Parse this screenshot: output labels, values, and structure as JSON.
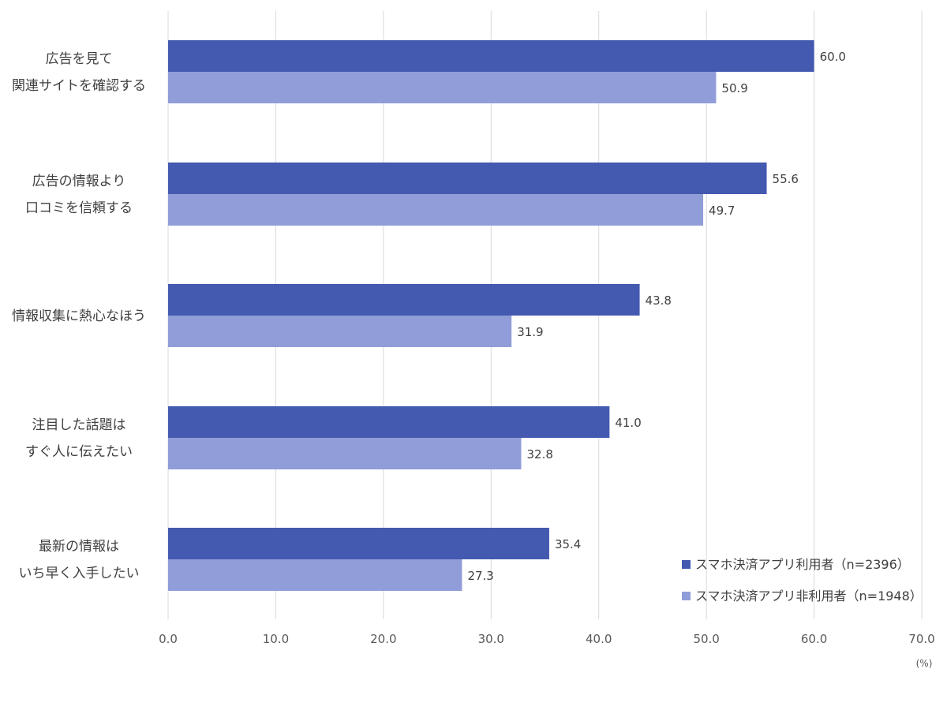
{
  "chart_data": {
    "type": "bar",
    "orientation": "horizontal",
    "categories": [
      [
        "広告を見て",
        "関連サイトを確認する"
      ],
      [
        "広告の情報より",
        "口コミを信頼する"
      ],
      [
        "情報収集に熱心なほう"
      ],
      [
        "注目した話題は",
        "すぐ人に伝えたい"
      ],
      [
        "最新の情報は",
        "いち早く入手したい"
      ]
    ],
    "series": [
      {
        "name": "スマホ決済アプリ利用者（n=2396）",
        "color": "#4459b0",
        "values": [
          60.0,
          55.6,
          43.8,
          41.0,
          35.4
        ]
      },
      {
        "name": "スマホ決済アプリ非利用者（n=1948）",
        "color": "#919dd8",
        "values": [
          50.9,
          49.7,
          31.9,
          32.8,
          27.3
        ]
      }
    ],
    "xlim": [
      0,
      70
    ],
    "xticks": [
      "0.0",
      "10.0",
      "20.0",
      "30.0",
      "40.0",
      "50.0",
      "60.0",
      "70.0"
    ],
    "unit": "(%)",
    "grid": true,
    "legend": "bottom-right",
    "title": "",
    "xlabel": "",
    "ylabel": ""
  }
}
